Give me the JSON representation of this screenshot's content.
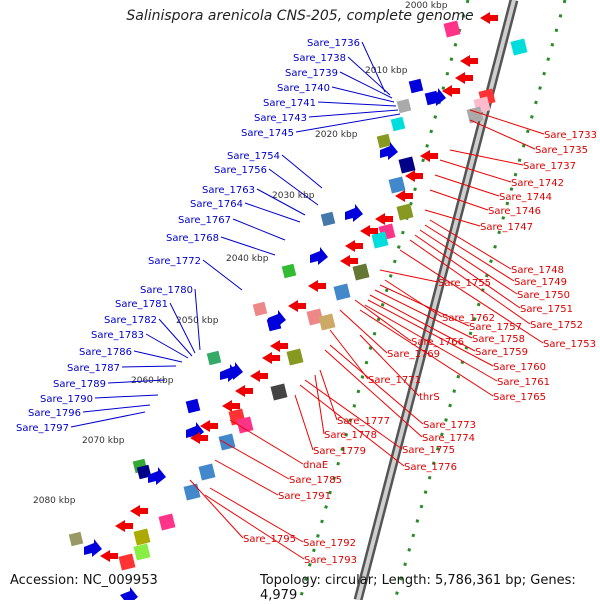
{
  "title": "Salinispora arenicola CNS-205, complete genome",
  "footer": {
    "accession": "Accession: NC_009953",
    "topology": "Topology: circular; Length: 5,786,361 bp; Genes: 4,979"
  },
  "ticks": [
    "2000 kbp",
    "2010 kbp",
    "2020 kbp",
    "2030 kbp",
    "2040 kbp",
    "2050 kbp",
    "2060 kbp",
    "2070 kbp",
    "2080 kbp"
  ],
  "left_labels": [
    "Sare_1736",
    "Sare_1738",
    "Sare_1739",
    "Sare_1740",
    "Sare_1741",
    "Sare_1743",
    "Sare_1745",
    "Sare_1754",
    "Sare_1756",
    "Sare_1763",
    "Sare_1764",
    "Sare_1767",
    "Sare_1768",
    "Sare_1772",
    "Sare_1780",
    "Sare_1781",
    "Sare_1782",
    "Sare_1783",
    "Sare_1786",
    "Sare_1787",
    "Sare_1789",
    "Sare_1790",
    "Sare_1796",
    "Sare_1797"
  ],
  "right_labels": [
    "Sare_1733",
    "Sare_1735",
    "Sare_1737",
    "Sare_1742",
    "Sare_1744",
    "Sare_1746",
    "Sare_1747",
    "Sare_1748",
    "Sare_1749",
    "Sare_1750",
    "Sare_1751",
    "Sare_1752",
    "Sare_1753",
    "Sare_1755",
    "Sare_1762",
    "Sare_1757",
    "Sare_1758",
    "Sare_1759",
    "Sare_1766",
    "Sare_1769",
    "Sare_1760",
    "Sare_1761",
    "Sare_1765",
    "Sare_1771",
    "thrS",
    "Sare_1773",
    "Sare_1774",
    "Sare_1777",
    "Sare_1778",
    "Sare_1775",
    "Sare_1779",
    "Sare_1776",
    "dnaE",
    "Sare_1785",
    "Sare_1791",
    "Sare_1795",
    "Sare_1792",
    "Sare_1793"
  ],
  "colors": {
    "forward": "#0000cc",
    "reverse": "#dd0000",
    "backbone": "#888888",
    "dots": "#228822"
  }
}
